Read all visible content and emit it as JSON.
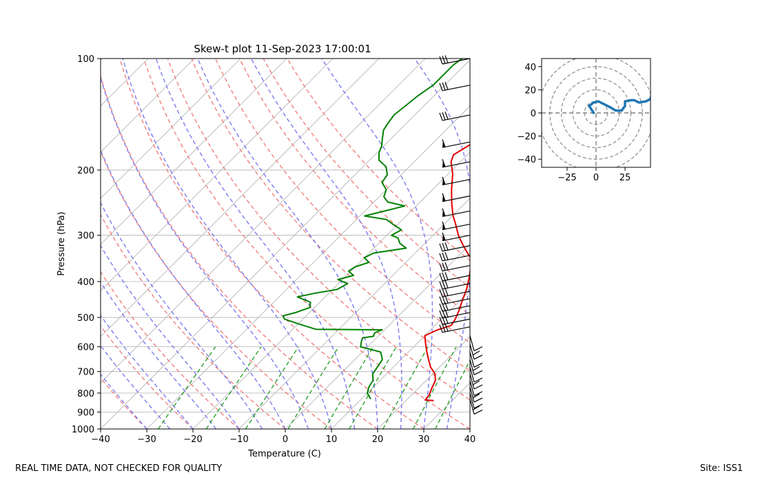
{
  "chart_data": [
    {
      "type": "line",
      "title": "Skew-t plot 11-Sep-2023 17:00:01",
      "xlabel": "Temperature (C)",
      "ylabel": "Pressure (hPa)",
      "xlim": [
        -40,
        40
      ],
      "ylim": [
        1000,
        100
      ],
      "xticks": [
        "−40",
        "−30",
        "−20",
        "−10",
        "0",
        "10",
        "20",
        "30",
        "40"
      ],
      "yticks": [
        "100",
        "200",
        "300",
        "400",
        "500",
        "600",
        "700",
        "800",
        "900",
        "1000"
      ],
      "log_pressure_axis": true,
      "skew": "temperature lines slanted to the right with height",
      "grid": true,
      "background_lines": {
        "isotherms_color": "#b0b0b0",
        "dry_adiabats_color": "#f08080",
        "moist_adiabats_color": "#7b7bf0",
        "mixing_ratio_color": "#2ca02c"
      },
      "series": [
        {
          "color": "#e00000",
          "points": [
            [
              26.0,
              838
            ],
            [
              24.0,
              835
            ],
            [
              23.8,
              810
            ],
            [
              23.0,
              780
            ],
            [
              22.0,
              740
            ],
            [
              20.5,
              710
            ],
            [
              18.0,
              680
            ],
            [
              16.0,
              650
            ],
            [
              14.0,
              620
            ],
            [
              12.0,
              590
            ],
            [
              10.0,
              560
            ],
            [
              11.5,
              540
            ],
            [
              13.5,
              525
            ],
            [
              13.0,
              505
            ],
            [
              12.0,
              480
            ],
            [
              10.5,
              450
            ],
            [
              9.0,
              420
            ],
            [
              7.0,
              390
            ],
            [
              5.0,
              365
            ],
            [
              3.0,
              345
            ],
            [
              0.5,
              330
            ],
            [
              -2.0,
              315
            ],
            [
              -4.5,
              300
            ],
            [
              -7.5,
              280
            ],
            [
              -10.0,
              265
            ],
            [
              -13.0,
              245
            ],
            [
              -16.0,
              225
            ],
            [
              -19.0,
              205
            ],
            [
              -22.0,
              190
            ],
            [
              -23.0,
              182
            ],
            [
              -22.0,
              174
            ],
            [
              -21.0,
              166
            ],
            [
              -20.5,
              158
            ],
            [
              -21.0,
              150
            ],
            [
              -22.0,
              140
            ],
            [
              -23.0,
              132
            ],
            [
              -24.5,
              124
            ],
            [
              -26.0,
              117
            ],
            [
              -27.0,
              112
            ],
            [
              -28.0,
              108
            ],
            [
              -28.5,
              100
            ]
          ]
        },
        {
          "color": "#008000",
          "points": [
            [
              12.0,
              830
            ],
            [
              10.0,
              800
            ],
            [
              9.0,
              770
            ],
            [
              8.5,
              740
            ],
            [
              7.0,
              710
            ],
            [
              6.5,
              680
            ],
            [
              6.0,
              650
            ],
            [
              4.0,
              620
            ],
            [
              -1.5,
              600
            ],
            [
              -2.0,
              590
            ],
            [
              -2.5,
              580
            ],
            [
              -3.0,
              568
            ],
            [
              -1.0,
              562
            ],
            [
              -1.5,
              550
            ],
            [
              -0.5,
              540
            ],
            [
              -15.0,
              538
            ],
            [
              -20.0,
              520
            ],
            [
              -24.0,
              505
            ],
            [
              -25.0,
              495
            ],
            [
              -23.0,
              485
            ],
            [
              -21.0,
              470
            ],
            [
              -22.0,
              455
            ],
            [
              -26.0,
              440
            ],
            [
              -23.0,
              430
            ],
            [
              -19.0,
              420
            ],
            [
              -18.0,
              405
            ],
            [
              -21.0,
              395
            ],
            [
              -18.5,
              385
            ],
            [
              -20.5,
              375
            ],
            [
              -20.0,
              365
            ],
            [
              -18.0,
              355
            ],
            [
              -20.0,
              345
            ],
            [
              -19.0,
              335
            ],
            [
              -13.0,
              325
            ],
            [
              -15.5,
              315
            ],
            [
              -17.0,
              305
            ],
            [
              -19.0,
              300
            ],
            [
              -18.0,
              290
            ],
            [
              -20.5,
              282
            ],
            [
              -23.5,
              272
            ],
            [
              -29.0,
              266
            ],
            [
              -24.5,
              255
            ],
            [
              -22.5,
              250
            ],
            [
              -27.0,
              244
            ],
            [
              -29.0,
              236
            ],
            [
              -30.0,
              226
            ],
            [
              -32.5,
              216
            ],
            [
              -33.0,
              206
            ],
            [
              -35.0,
              196
            ],
            [
              -38.0,
              188
            ],
            [
              -39.5,
              180
            ],
            [
              -40.5,
              172
            ],
            [
              -42.0,
              164
            ],
            [
              -43.5,
              156
            ],
            [
              -44.0,
              150
            ],
            [
              -44.5,
              142
            ],
            [
              -44.0,
              134
            ],
            [
              -43.5,
              126
            ],
            [
              -42.5,
              118
            ],
            [
              -42.5,
              110
            ],
            [
              -42.5,
              104
            ],
            [
              -42.0,
              100
            ]
          ]
        }
      ]
    },
    {
      "type": "line",
      "title": "",
      "xlabel": "",
      "ylabel": "",
      "xlim": [
        -47,
        47
      ],
      "ylim": [
        -47,
        47
      ],
      "xticks": [
        "−25",
        "0",
        "25"
      ],
      "yticks": [
        "40",
        "20",
        "0",
        "−20",
        "−40"
      ],
      "range_rings": [
        10,
        20,
        30,
        40,
        50
      ],
      "series": [
        {
          "color": "#1f77b4",
          "points": [
            [
              -2,
              0
            ],
            [
              -4,
              3
            ],
            [
              -6,
              6
            ],
            [
              -2,
              9
            ],
            [
              2,
              10
            ],
            [
              6,
              8
            ],
            [
              12,
              5
            ],
            [
              17,
              2
            ],
            [
              22,
              2
            ],
            [
              25,
              6
            ],
            [
              25,
              10
            ],
            [
              30,
              11
            ],
            [
              33,
              11
            ],
            [
              35,
              10
            ],
            [
              37,
              9
            ],
            [
              43,
              10
            ],
            [
              47,
              12
            ],
            [
              48,
              16
            ]
          ]
        }
      ]
    }
  ],
  "footer": {
    "left": "REAL TIME DATA, NOT CHECKED FOR QUALITY",
    "right": "Site: ISS1"
  }
}
